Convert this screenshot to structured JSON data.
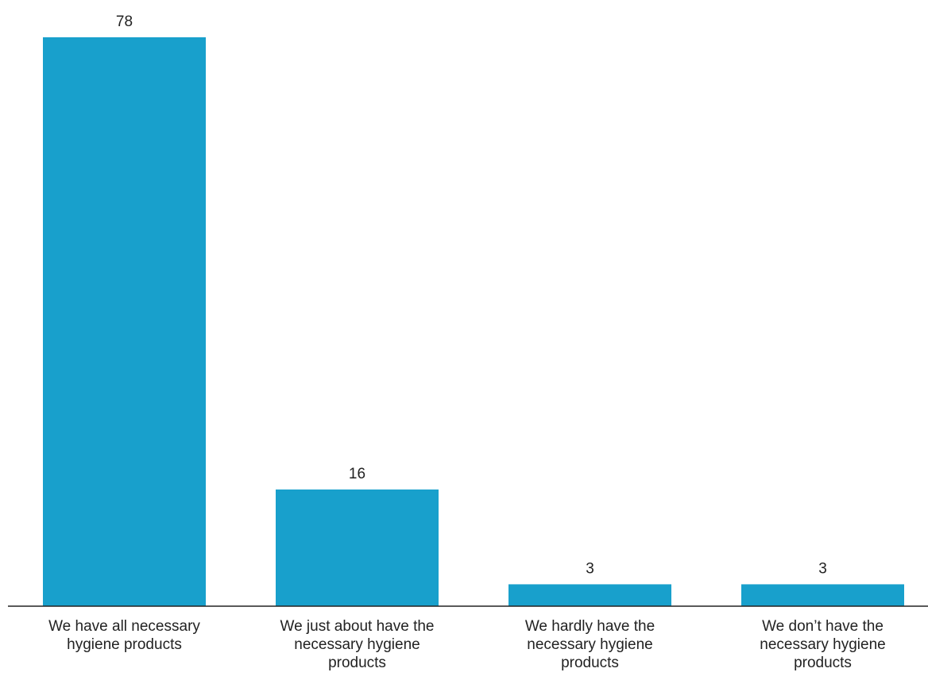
{
  "chart_data": {
    "type": "bar",
    "categories": [
      [
        "We have all necessary",
        "hygiene products"
      ],
      [
        "We just about have the",
        "necessary hygiene",
        "products"
      ],
      [
        "We hardly have the",
        "necessary hygiene",
        "products"
      ],
      [
        "We don’t have the",
        "necessary hygiene",
        "products"
      ]
    ],
    "values": [
      78,
      16,
      3,
      3
    ],
    "value_labels": [
      "78",
      "16",
      "3",
      "3"
    ],
    "title": "",
    "xlabel": "",
    "ylabel": "",
    "ylim": [
      0,
      78
    ],
    "grid": false,
    "legend": "none",
    "bar_color": "#18a0cc",
    "axis_color": "#222222"
  }
}
